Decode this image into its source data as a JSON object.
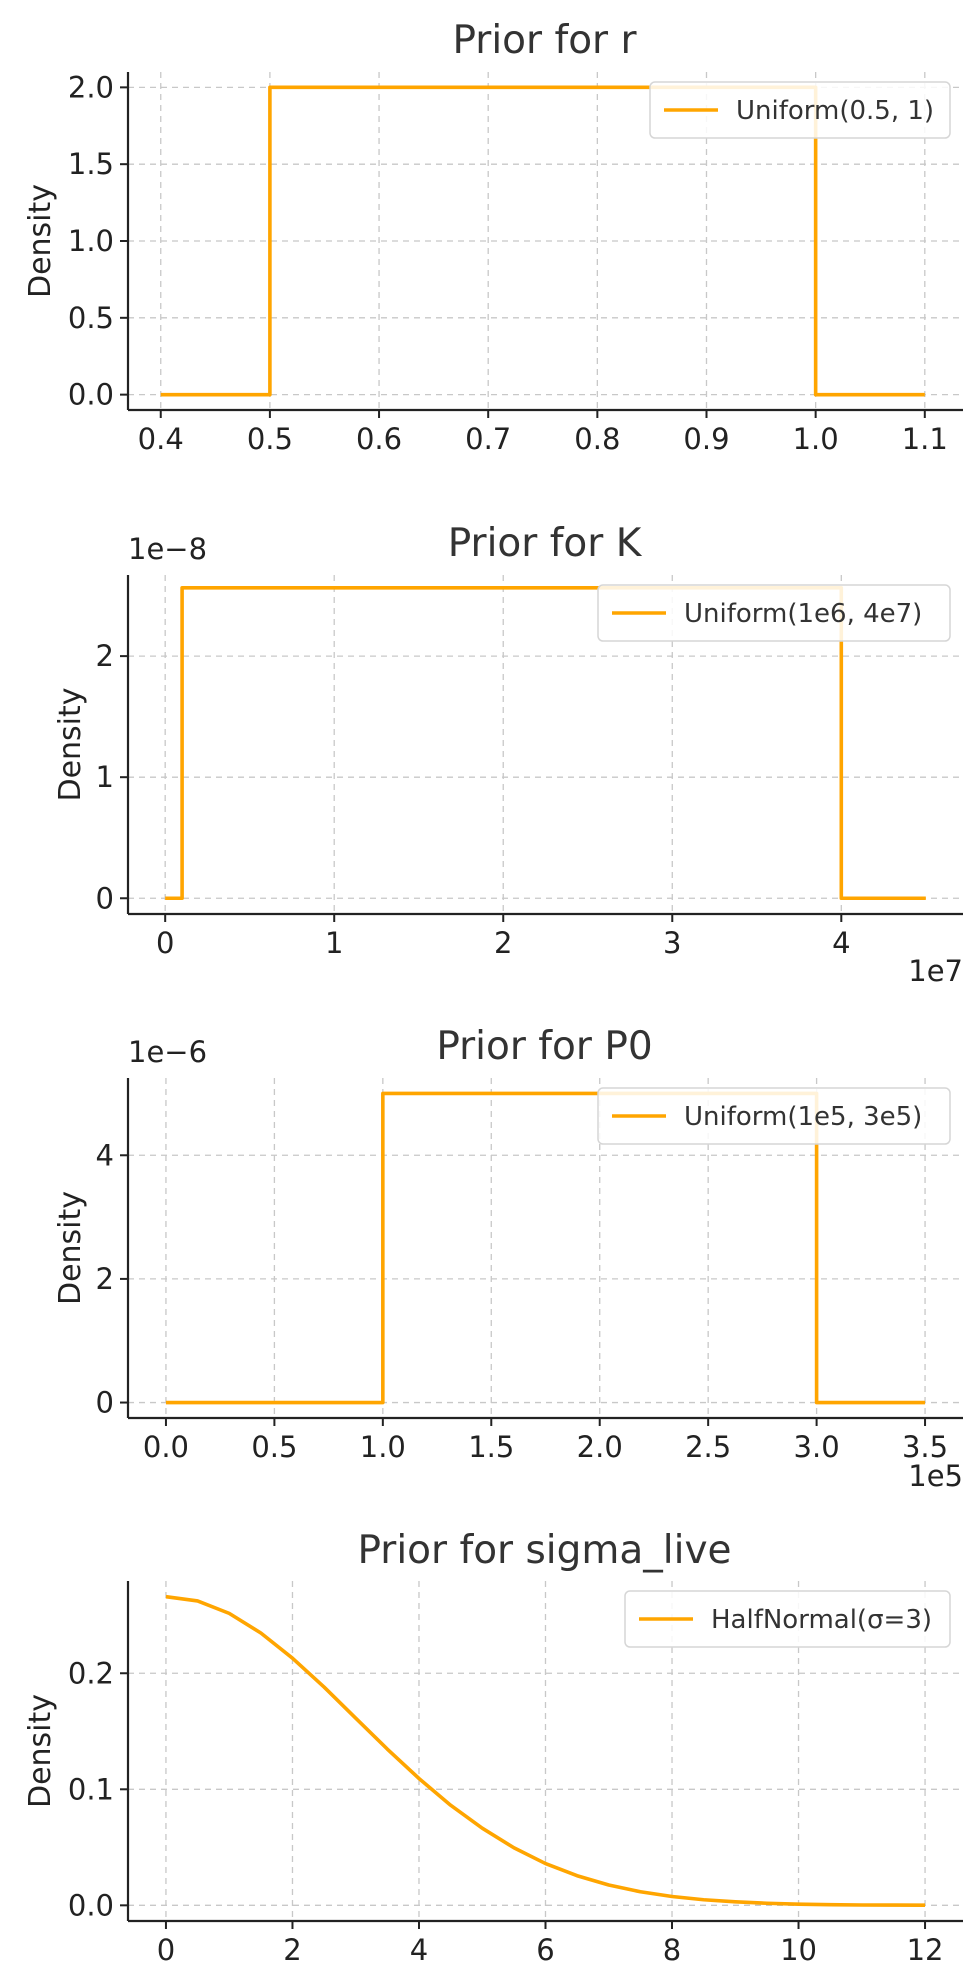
{
  "chart_data": [
    {
      "type": "line",
      "title": "Prior for r",
      "xlabel": "",
      "ylabel": "Density",
      "xlim": [
        0.37,
        1.135
      ],
      "ylim": [
        -0.1,
        2.1
      ],
      "xticks": [
        0.4,
        0.5,
        0.6,
        0.7,
        0.8,
        0.9,
        1.0,
        1.1
      ],
      "xtick_labels": [
        "0.4",
        "0.5",
        "0.6",
        "0.7",
        "0.8",
        "0.9",
        "1.0",
        "1.1"
      ],
      "yticks": [
        0,
        0.5,
        1.0,
        1.5,
        2.0
      ],
      "ytick_labels": [
        "0.0",
        "0.5",
        "1.0",
        "1.5",
        "2.0"
      ],
      "x_offset_label": "",
      "y_offset_label": "",
      "grid": true,
      "legend_position": "top-right",
      "color": "#FFA500",
      "series": [
        {
          "name": "Uniform(0.5, 1)",
          "points": [
            [
              0.4,
              0
            ],
            [
              0.5,
              0
            ],
            [
              0.5,
              2
            ],
            [
              1.0,
              2
            ],
            [
              1.0,
              0
            ],
            [
              1.1,
              0
            ]
          ]
        }
      ]
    },
    {
      "type": "line",
      "title": "Prior for K",
      "xlabel": "",
      "ylabel": "Density",
      "xlim": [
        -0.22,
        4.72
      ],
      "ylim": [
        -0.13,
        2.67
      ],
      "xticks": [
        0,
        1,
        2,
        3,
        4
      ],
      "xtick_labels": [
        "0",
        "1",
        "2",
        "3",
        "4"
      ],
      "yticks": [
        0,
        1,
        2
      ],
      "ytick_labels": [
        "0",
        "1",
        "2"
      ],
      "x_offset_label": "1e7",
      "y_offset_label": "1e−8",
      "grid": true,
      "legend_position": "top-right",
      "color": "#FFA500",
      "series": [
        {
          "name": "Uniform(1e6, 4e7)",
          "points": [
            [
              0,
              0
            ],
            [
              0.1,
              0
            ],
            [
              0.1,
              2.564
            ],
            [
              4.0,
              2.564
            ],
            [
              4.0,
              0
            ],
            [
              4.5,
              0
            ]
          ]
        }
      ]
    },
    {
      "type": "line",
      "title": "Prior for P0",
      "xlabel": "",
      "ylabel": "Density",
      "xlim": [
        -0.175,
        3.675
      ],
      "ylim": [
        -0.25,
        5.25
      ],
      "xticks": [
        0,
        0.5,
        1.0,
        1.5,
        2.0,
        2.5,
        3.0,
        3.5
      ],
      "xtick_labels": [
        "0.0",
        "0.5",
        "1.0",
        "1.5",
        "2.0",
        "2.5",
        "3.0",
        "3.5"
      ],
      "yticks": [
        0,
        2,
        4
      ],
      "ytick_labels": [
        "0",
        "2",
        "4"
      ],
      "x_offset_label": "1e5",
      "y_offset_label": "1e−6",
      "grid": true,
      "legend_position": "top-right",
      "color": "#FFA500",
      "series": [
        {
          "name": "Uniform(1e5, 3e5)",
          "points": [
            [
              0,
              0
            ],
            [
              1.0,
              0
            ],
            [
              1.0,
              5
            ],
            [
              3.0,
              5
            ],
            [
              3.0,
              0
            ],
            [
              3.5,
              0
            ]
          ]
        }
      ]
    },
    {
      "type": "line",
      "title": "Prior for sigma_live",
      "xlabel": "",
      "ylabel": "Density",
      "xlim": [
        -0.6,
        12.6
      ],
      "ylim": [
        -0.0135,
        0.2795
      ],
      "xticks": [
        0,
        2,
        4,
        6,
        8,
        10,
        12
      ],
      "xtick_labels": [
        "0",
        "2",
        "4",
        "6",
        "8",
        "10",
        "12"
      ],
      "yticks": [
        0,
        0.1,
        0.2
      ],
      "ytick_labels": [
        "0.0",
        "0.1",
        "0.2"
      ],
      "x_offset_label": "",
      "y_offset_label": "",
      "grid": true,
      "legend_position": "top-right",
      "color": "#FFA500",
      "series": [
        {
          "name": "HalfNormal(σ=3)",
          "points": [
            [
              0,
              0.266
            ],
            [
              0.5,
              0.2623
            ],
            [
              1,
              0.2516
            ],
            [
              1.5,
              0.2347
            ],
            [
              2,
              0.213
            ],
            [
              2.5,
              0.1881
            ],
            [
              3,
              0.1613
            ],
            [
              3.5,
              0.1346
            ],
            [
              4,
              0.1093
            ],
            [
              4.5,
              0.0863
            ],
            [
              5,
              0.0665
            ],
            [
              5.5,
              0.0496
            ],
            [
              6,
              0.036
            ],
            [
              6.5,
              0.0255
            ],
            [
              7,
              0.0175
            ],
            [
              7.5,
              0.0117
            ],
            [
              8,
              0.0076
            ],
            [
              8.5,
              0.0048
            ],
            [
              9,
              0.003
            ],
            [
              9.5,
              0.0018
            ],
            [
              10,
              0.001
            ],
            [
              10.5,
              0.0006
            ],
            [
              11,
              0.0003
            ],
            [
              11.5,
              0.0002
            ],
            [
              12,
              0.0001
            ]
          ]
        }
      ]
    }
  ]
}
